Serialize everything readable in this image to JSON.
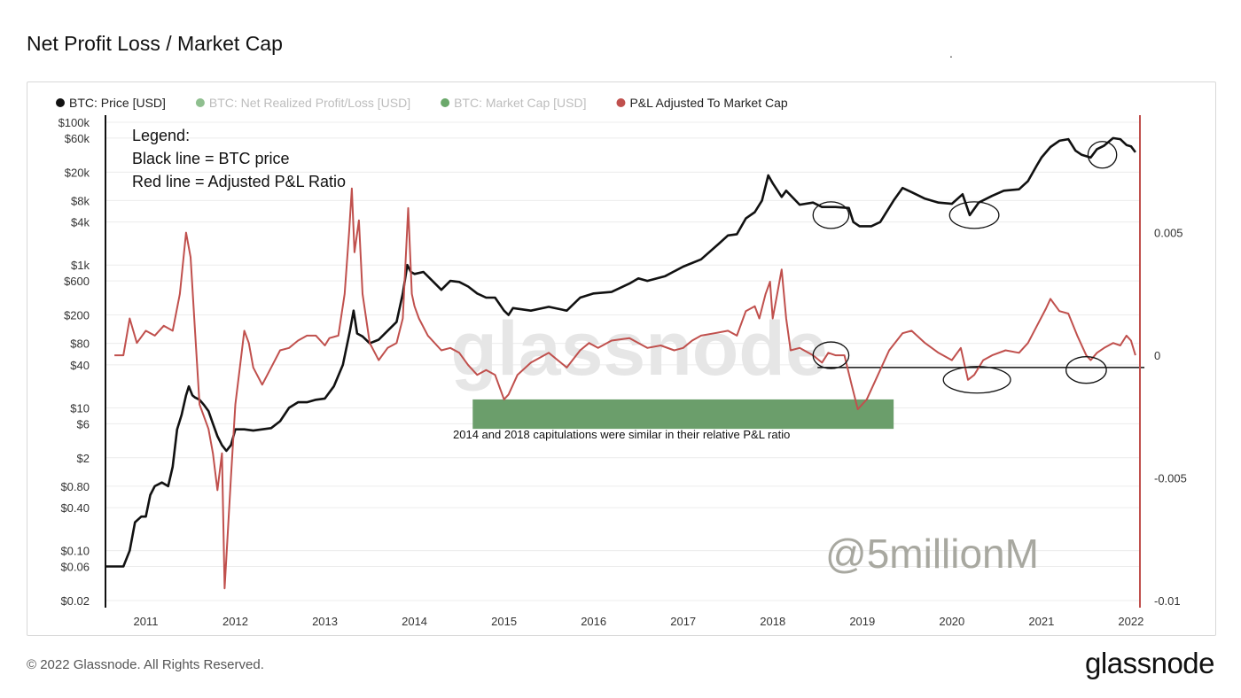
{
  "page": {
    "title": "Net Profit Loss / Market Cap",
    "footer_copyright": "© 2022 Glassnode. All Rights Reserved.",
    "footer_logo": "glassnode",
    "stray_mark": "."
  },
  "legend_items": [
    {
      "label": "BTC: Price [USD]",
      "color": "#111111",
      "active": true
    },
    {
      "label": "BTC: Net Realized Profit/Loss [USD]",
      "color": "#8fbf8f",
      "active": false
    },
    {
      "label": "BTC: Market Cap [USD]",
      "color": "#6aa86a",
      "active": false
    },
    {
      "label": "P&L Adjusted To Market Cap",
      "color": "#c0504d",
      "active": true
    }
  ],
  "annotations": {
    "legend_box": [
      "Legend:",
      "Black line = BTC price",
      "Red line = Adjusted P&L Ratio"
    ],
    "capitulation_note": "2014 and 2018 capitulations were similar in their relative P&L ratio",
    "signature": "@5millionM",
    "watermark": "glassnode"
  },
  "colors": {
    "price_line": "#111111",
    "ratio_line": "#c0504d",
    "highlight_box": "#6b9e6b",
    "grid": "#ececec"
  },
  "chart_data": {
    "type": "line",
    "x_ticks": [
      "2011",
      "2012",
      "2013",
      "2014",
      "2015",
      "2016",
      "2017",
      "2018",
      "2019",
      "2020",
      "2021",
      "2022"
    ],
    "x_range": [
      2010.55,
      2022.1
    ],
    "y_left": {
      "scale": "log",
      "tick_labels": [
        "$100k",
        "$60k",
        "$20k",
        "$8k",
        "$4k",
        "$1k",
        "$600",
        "$200",
        "$80",
        "$40",
        "$10",
        "$6",
        "$2",
        "$0.80",
        "$0.40",
        "$0.10",
        "$0.06",
        "$0.02"
      ],
      "tick_values": [
        100000,
        60000,
        20000,
        8000,
        4000,
        1000,
        600,
        200,
        80,
        40,
        10,
        6,
        2,
        0.8,
        0.4,
        0.1,
        0.06,
        0.02
      ],
      "range": [
        0.02,
        100000
      ]
    },
    "y_right": {
      "scale": "linear",
      "tick_labels": [
        "0.005",
        "0",
        "-0.005",
        "-0.01"
      ],
      "tick_values": [
        0.005,
        0,
        -0.005,
        -0.01
      ],
      "range": [
        -0.01,
        0.0095
      ]
    },
    "series": [
      {
        "name": "BTC: Price [USD]",
        "axis": "left",
        "points": [
          [
            2010.55,
            0.06
          ],
          [
            2010.65,
            0.06
          ],
          [
            2010.75,
            0.06
          ],
          [
            2010.82,
            0.1
          ],
          [
            2010.88,
            0.25
          ],
          [
            2010.95,
            0.3
          ],
          [
            2011.0,
            0.3
          ],
          [
            2011.05,
            0.6
          ],
          [
            2011.1,
            0.8
          ],
          [
            2011.18,
            0.9
          ],
          [
            2011.25,
            0.8
          ],
          [
            2011.3,
            1.5
          ],
          [
            2011.35,
            5
          ],
          [
            2011.4,
            8
          ],
          [
            2011.45,
            15
          ],
          [
            2011.48,
            20
          ],
          [
            2011.52,
            15
          ],
          [
            2011.55,
            14
          ],
          [
            2011.6,
            13
          ],
          [
            2011.65,
            11
          ],
          [
            2011.7,
            9
          ],
          [
            2011.75,
            6
          ],
          [
            2011.8,
            4
          ],
          [
            2011.85,
            3
          ],
          [
            2011.9,
            2.5
          ],
          [
            2011.95,
            3
          ],
          [
            2012.0,
            5
          ],
          [
            2012.1,
            5
          ],
          [
            2012.2,
            4.8
          ],
          [
            2012.3,
            5
          ],
          [
            2012.4,
            5.2
          ],
          [
            2012.5,
            6.5
          ],
          [
            2012.6,
            10
          ],
          [
            2012.7,
            12
          ],
          [
            2012.8,
            12
          ],
          [
            2012.9,
            13
          ],
          [
            2013.0,
            13.5
          ],
          [
            2013.1,
            20
          ],
          [
            2013.2,
            40
          ],
          [
            2013.28,
            120
          ],
          [
            2013.32,
            230
          ],
          [
            2013.36,
            110
          ],
          [
            2013.42,
            100
          ],
          [
            2013.5,
            80
          ],
          [
            2013.6,
            90
          ],
          [
            2013.7,
            120
          ],
          [
            2013.8,
            160
          ],
          [
            2013.87,
            400
          ],
          [
            2013.92,
            1000
          ],
          [
            2013.96,
            800
          ],
          [
            2014.0,
            750
          ],
          [
            2014.1,
            800
          ],
          [
            2014.2,
            600
          ],
          [
            2014.3,
            450
          ],
          [
            2014.4,
            600
          ],
          [
            2014.5,
            580
          ],
          [
            2014.6,
            500
          ],
          [
            2014.7,
            400
          ],
          [
            2014.8,
            350
          ],
          [
            2014.9,
            350
          ],
          [
            2015.0,
            230
          ],
          [
            2015.05,
            200
          ],
          [
            2015.1,
            250
          ],
          [
            2015.3,
            230
          ],
          [
            2015.5,
            260
          ],
          [
            2015.7,
            230
          ],
          [
            2015.85,
            350
          ],
          [
            2016.0,
            400
          ],
          [
            2016.2,
            420
          ],
          [
            2016.4,
            550
          ],
          [
            2016.5,
            650
          ],
          [
            2016.6,
            600
          ],
          [
            2016.8,
            700
          ],
          [
            2017.0,
            950
          ],
          [
            2017.2,
            1200
          ],
          [
            2017.4,
            2000
          ],
          [
            2017.5,
            2600
          ],
          [
            2017.6,
            2700
          ],
          [
            2017.7,
            4500
          ],
          [
            2017.8,
            5500
          ],
          [
            2017.88,
            8000
          ],
          [
            2017.95,
            18000
          ],
          [
            2018.0,
            14000
          ],
          [
            2018.1,
            9000
          ],
          [
            2018.15,
            11000
          ],
          [
            2018.3,
            7000
          ],
          [
            2018.45,
            7500
          ],
          [
            2018.55,
            6500
          ],
          [
            2018.7,
            6500
          ],
          [
            2018.85,
            6300
          ],
          [
            2018.9,
            4000
          ],
          [
            2018.97,
            3500
          ],
          [
            2019.1,
            3500
          ],
          [
            2019.2,
            4000
          ],
          [
            2019.35,
            8000
          ],
          [
            2019.45,
            12000
          ],
          [
            2019.55,
            10500
          ],
          [
            2019.7,
            8500
          ],
          [
            2019.85,
            7500
          ],
          [
            2020.0,
            7200
          ],
          [
            2020.12,
            9800
          ],
          [
            2020.2,
            5000
          ],
          [
            2020.3,
            7500
          ],
          [
            2020.45,
            9300
          ],
          [
            2020.58,
            11000
          ],
          [
            2020.75,
            11500
          ],
          [
            2020.85,
            15000
          ],
          [
            2020.95,
            25000
          ],
          [
            2021.0,
            32000
          ],
          [
            2021.1,
            45000
          ],
          [
            2021.2,
            55000
          ],
          [
            2021.3,
            58000
          ],
          [
            2021.38,
            40000
          ],
          [
            2021.45,
            35000
          ],
          [
            2021.55,
            32000
          ],
          [
            2021.62,
            42000
          ],
          [
            2021.7,
            47000
          ],
          [
            2021.8,
            60000
          ],
          [
            2021.88,
            58000
          ],
          [
            2021.95,
            48000
          ],
          [
            2022.0,
            46000
          ],
          [
            2022.05,
            38000
          ]
        ]
      },
      {
        "name": "P&L Adjusted To Market Cap",
        "axis": "right",
        "points": [
          [
            2010.65,
            0.0
          ],
          [
            2010.75,
            0.0
          ],
          [
            2010.82,
            0.0015
          ],
          [
            2010.9,
            0.0005
          ],
          [
            2011.0,
            0.001
          ],
          [
            2011.1,
            0.0008
          ],
          [
            2011.2,
            0.0012
          ],
          [
            2011.3,
            0.001
          ],
          [
            2011.38,
            0.0025
          ],
          [
            2011.45,
            0.005
          ],
          [
            2011.5,
            0.004
          ],
          [
            2011.55,
            0.001
          ],
          [
            2011.6,
            -0.002
          ],
          [
            2011.7,
            -0.003
          ],
          [
            2011.75,
            -0.004
          ],
          [
            2011.8,
            -0.0055
          ],
          [
            2011.85,
            -0.004
          ],
          [
            2011.88,
            -0.0095
          ],
          [
            2011.95,
            -0.005
          ],
          [
            2012.0,
            -0.002
          ],
          [
            2012.05,
            -0.0005
          ],
          [
            2012.1,
            0.001
          ],
          [
            2012.15,
            0.0005
          ],
          [
            2012.2,
            -0.0005
          ],
          [
            2012.3,
            -0.0012
          ],
          [
            2012.4,
            -0.0005
          ],
          [
            2012.5,
            0.0002
          ],
          [
            2012.6,
            0.0003
          ],
          [
            2012.7,
            0.0006
          ],
          [
            2012.8,
            0.0008
          ],
          [
            2012.9,
            0.0008
          ],
          [
            2013.0,
            0.0004
          ],
          [
            2013.05,
            0.0007
          ],
          [
            2013.15,
            0.0008
          ],
          [
            2013.22,
            0.0025
          ],
          [
            2013.27,
            0.005
          ],
          [
            2013.3,
            0.0068
          ],
          [
            2013.33,
            0.0042
          ],
          [
            2013.38,
            0.0055
          ],
          [
            2013.42,
            0.0025
          ],
          [
            2013.5,
            0.0005
          ],
          [
            2013.6,
            -0.0002
          ],
          [
            2013.7,
            0.0003
          ],
          [
            2013.8,
            0.0005
          ],
          [
            2013.87,
            0.0015
          ],
          [
            2013.93,
            0.006
          ],
          [
            2013.97,
            0.0025
          ],
          [
            2014.0,
            0.002
          ],
          [
            2014.05,
            0.0015
          ],
          [
            2014.15,
            0.0008
          ],
          [
            2014.3,
            0.0002
          ],
          [
            2014.4,
            0.0003
          ],
          [
            2014.5,
            0.0001
          ],
          [
            2014.6,
            -0.0004
          ],
          [
            2014.7,
            -0.0008
          ],
          [
            2014.8,
            -0.0006
          ],
          [
            2014.9,
            -0.0008
          ],
          [
            2015.0,
            -0.0018
          ],
          [
            2015.05,
            -0.0016
          ],
          [
            2015.15,
            -0.0008
          ],
          [
            2015.3,
            -0.0003
          ],
          [
            2015.5,
            0.0001
          ],
          [
            2015.6,
            -0.0002
          ],
          [
            2015.7,
            -0.0005
          ],
          [
            2015.85,
            0.0002
          ],
          [
            2015.95,
            0.0005
          ],
          [
            2016.05,
            0.0003
          ],
          [
            2016.2,
            0.0006
          ],
          [
            2016.4,
            0.0007
          ],
          [
            2016.5,
            0.0005
          ],
          [
            2016.6,
            0.0003
          ],
          [
            2016.75,
            0.0004
          ],
          [
            2016.9,
            0.0002
          ],
          [
            2017.0,
            0.0003
          ],
          [
            2017.1,
            0.0006
          ],
          [
            2017.2,
            0.0008
          ],
          [
            2017.35,
            0.0009
          ],
          [
            2017.5,
            0.001
          ],
          [
            2017.6,
            0.0008
          ],
          [
            2017.7,
            0.0018
          ],
          [
            2017.8,
            0.002
          ],
          [
            2017.85,
            0.0015
          ],
          [
            2017.92,
            0.0025
          ],
          [
            2017.97,
            0.003
          ],
          [
            2018.0,
            0.0015
          ],
          [
            2018.05,
            0.0025
          ],
          [
            2018.1,
            0.0035
          ],
          [
            2018.15,
            0.0015
          ],
          [
            2018.2,
            0.0002
          ],
          [
            2018.3,
            0.0003
          ],
          [
            2018.45,
            0.0
          ],
          [
            2018.55,
            -0.0003
          ],
          [
            2018.62,
            0.0001
          ],
          [
            2018.7,
            0.0
          ],
          [
            2018.8,
            0.0
          ],
          [
            2018.88,
            -0.0012
          ],
          [
            2018.95,
            -0.0022
          ],
          [
            2019.05,
            -0.0018
          ],
          [
            2019.15,
            -0.001
          ],
          [
            2019.3,
            0.0002
          ],
          [
            2019.45,
            0.0009
          ],
          [
            2019.55,
            0.001
          ],
          [
            2019.7,
            0.0005
          ],
          [
            2019.85,
            0.0001
          ],
          [
            2020.0,
            -0.0002
          ],
          [
            2020.1,
            0.0003
          ],
          [
            2020.18,
            -0.001
          ],
          [
            2020.25,
            -0.0008
          ],
          [
            2020.35,
            -0.0002
          ],
          [
            2020.45,
            0.0
          ],
          [
            2020.6,
            0.0002
          ],
          [
            2020.75,
            0.0001
          ],
          [
            2020.85,
            0.0005
          ],
          [
            2020.95,
            0.0012
          ],
          [
            2021.05,
            0.0019
          ],
          [
            2021.1,
            0.0023
          ],
          [
            2021.2,
            0.0018
          ],
          [
            2021.3,
            0.0017
          ],
          [
            2021.4,
            0.0008
          ],
          [
            2021.5,
            0.0
          ],
          [
            2021.55,
            -0.0002
          ],
          [
            2021.62,
            0.0001
          ],
          [
            2021.7,
            0.0003
          ],
          [
            2021.8,
            0.0005
          ],
          [
            2021.88,
            0.0004
          ],
          [
            2021.95,
            0.0008
          ],
          [
            2022.0,
            0.0006
          ],
          [
            2022.05,
            0.0
          ]
        ]
      }
    ],
    "reference_line": {
      "axis": "right",
      "y": -0.0005,
      "x_from": 2018.5,
      "x_to": 2022.15
    },
    "highlight_region": {
      "x_from": 2014.65,
      "x_to": 2019.35,
      "y_from": -0.0018,
      "y_to": -0.003
    },
    "circles": [
      {
        "x": 2018.65,
        "y_price": 5000,
        "w": 0.4
      },
      {
        "x": 2020.25,
        "y_price": 5000,
        "w": 0.55
      },
      {
        "x": 2021.68,
        "y_price": 35000,
        "w": 0.32
      },
      {
        "x": 2018.65,
        "y_ratio": 0.0,
        "w": 0.4
      },
      {
        "x": 2020.28,
        "y_ratio": -0.001,
        "w": 0.75
      },
      {
        "x": 2021.5,
        "y_ratio": -0.0006,
        "w": 0.45
      }
    ]
  }
}
